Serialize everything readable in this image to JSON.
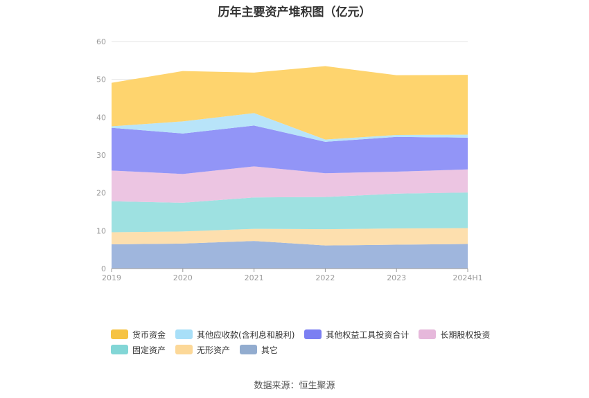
{
  "title": "历年主要资产堆积图（亿元）",
  "source": "数据来源：恒生聚源",
  "chart_data": {
    "type": "area",
    "stacked": true,
    "categories": [
      "2019",
      "2020",
      "2021",
      "2022",
      "2023",
      "2024H1"
    ],
    "ylim": [
      0,
      60
    ],
    "yticks": [
      0,
      10,
      20,
      30,
      40,
      50,
      60
    ],
    "grid": true,
    "legend_position": "bottom",
    "series": [
      {
        "name": "其它",
        "color": "#9fb6dd",
        "values": [
          6.4,
          6.6,
          7.3,
          6.1,
          6.3,
          6.5
        ]
      },
      {
        "name": "无形资产",
        "color": "#fddfae",
        "values": [
          3.2,
          3.2,
          3.2,
          4.3,
          4.3,
          4.2
        ]
      },
      {
        "name": "固定资产",
        "color": "#9ee1e1",
        "values": [
          8.2,
          7.6,
          8.3,
          8.5,
          9.2,
          9.4
        ]
      },
      {
        "name": "长期股权投资",
        "color": "#ecc5e2",
        "values": [
          8.1,
          7.6,
          8.2,
          6.3,
          5.8,
          6.1
        ]
      },
      {
        "name": "其他权益工具投资合计",
        "color": "#9295f7",
        "values": [
          11.3,
          10.7,
          10.8,
          8.3,
          9.2,
          8.4
        ]
      },
      {
        "name": "其他应收款(含利息和股利)",
        "color": "#b8e4f9",
        "values": [
          0.4,
          3.2,
          3.3,
          0.6,
          0.5,
          0.8
        ]
      },
      {
        "name": "货币资金",
        "color": "#fed46e",
        "values": [
          11.5,
          13.3,
          10.7,
          19.4,
          15.8,
          15.8
        ]
      }
    ]
  },
  "legend": {
    "rows": [
      [
        {
          "name": "货币资金",
          "color": "#f6c343"
        },
        {
          "name": "其他应收款(含利息和股利)",
          "color": "#a8dff8"
        },
        {
          "name": "其他权益工具投资合计",
          "color": "#7b7ff2"
        },
        {
          "name": "长期股权投资",
          "color": "#e6b8db"
        }
      ],
      [
        {
          "name": "固定资产",
          "color": "#82d6d6"
        },
        {
          "name": "无形资产",
          "color": "#fcd898"
        },
        {
          "name": "其它",
          "color": "#92accf"
        }
      ]
    ]
  }
}
